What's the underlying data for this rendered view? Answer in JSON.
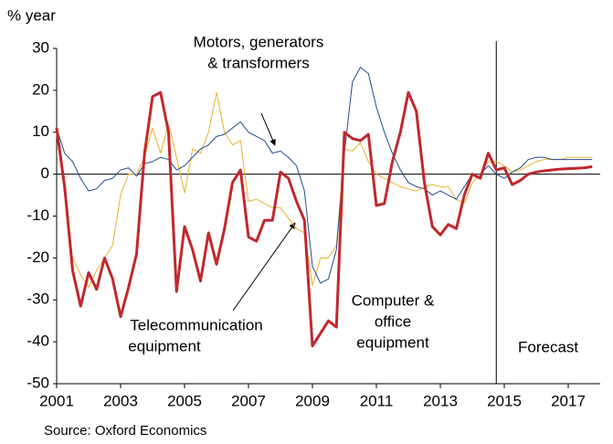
{
  "chart_data": {
    "type": "line",
    "y_label": "% year",
    "source": "Source: Oxford Economics",
    "xlim": [
      2001,
      2018
    ],
    "xticks": [
      2001,
      2003,
      2005,
      2007,
      2009,
      2011,
      2013,
      2015,
      2017
    ],
    "ylim": [
      -50,
      30
    ],
    "yticks": [
      -50,
      -40,
      -30,
      -20,
      -10,
      0,
      10,
      20,
      30
    ],
    "grid": false,
    "forecast_start": 2014.75,
    "x": [
      2001,
      2001.25,
      2001.5,
      2001.75,
      2002,
      2002.25,
      2002.5,
      2002.75,
      2003,
      2003.25,
      2003.5,
      2003.75,
      2004,
      2004.25,
      2004.5,
      2004.75,
      2005,
      2005.25,
      2005.5,
      2005.75,
      2006,
      2006.25,
      2006.5,
      2006.75,
      2007,
      2007.25,
      2007.5,
      2007.75,
      2008,
      2008.25,
      2008.5,
      2008.75,
      2009,
      2009.25,
      2009.5,
      2009.75,
      2010,
      2010.25,
      2010.5,
      2010.75,
      2011,
      2011.25,
      2011.5,
      2011.75,
      2012,
      2012.25,
      2012.5,
      2012.75,
      2013,
      2013.25,
      2013.5,
      2013.75,
      2014,
      2014.25,
      2014.5,
      2014.75,
      2015,
      2015.25,
      2015.5,
      2015.75,
      2016,
      2016.25,
      2016.5,
      2016.75,
      2017,
      2017.25,
      2017.5,
      2017.75
    ],
    "series": [
      {
        "color": "#e8b130",
        "width": 1,
        "values": [
          10,
          -5,
          -20,
          -24,
          -27,
          -23,
          -20,
          -17,
          -5,
          0,
          0,
          4,
          11,
          5,
          12,
          4,
          -4.5,
          6,
          5,
          10,
          19.5,
          10,
          7,
          8,
          -6.5,
          -6,
          -7,
          -8,
          -8,
          -10.5,
          -13,
          -14,
          -26.5,
          -20,
          -20,
          -17,
          6,
          5.5,
          7.5,
          3,
          0,
          -1,
          -2,
          -3,
          -3.5,
          -4,
          -3,
          -2.5,
          -3,
          -3,
          -6,
          -7,
          -2,
          0,
          3,
          3,
          2,
          0.5,
          1,
          2,
          3,
          3.5,
          3.5,
          3.5,
          4,
          4,
          4,
          4
        ]
      },
      {
        "color": "#1f4e8c",
        "width": 1,
        "values": [
          11,
          5,
          3,
          -1,
          -4,
          -3.5,
          -1.5,
          -1,
          1,
          1.5,
          -0.5,
          2.5,
          3,
          4,
          3.5,
          1,
          2,
          4,
          6,
          7,
          9,
          9.5,
          11,
          12.5,
          10,
          9,
          8,
          5,
          5.5,
          4,
          2,
          -4,
          -22,
          -26,
          -25,
          -18,
          5,
          22,
          25.5,
          24,
          16,
          10,
          5,
          1,
          -2,
          -3,
          -3.5,
          -5,
          -4,
          -5,
          -6,
          -3,
          0,
          0,
          2,
          0,
          -1,
          0.5,
          1.5,
          3.5,
          4,
          4,
          3.5,
          3.5,
          3.5,
          3.5,
          3.5,
          3.5
        ]
      },
      {
        "color": "#c0282d",
        "width": 3,
        "values": [
          11,
          -3,
          -23,
          -31.5,
          -23.5,
          -27.5,
          -20,
          -25,
          -34,
          -27,
          -19,
          5,
          18.5,
          19.5,
          10,
          -28,
          -12.5,
          -18,
          -25.5,
          -14,
          -21.5,
          -13,
          -2,
          1,
          -15,
          -16,
          -11,
          -11,
          0.5,
          -1,
          -6.5,
          -11,
          -41,
          -38,
          -35,
          -36.5,
          10,
          8.5,
          8,
          9.5,
          -7.5,
          -7,
          3,
          10,
          19.5,
          15,
          -2,
          -12.5,
          -14.5,
          -12,
          -13,
          -5,
          0,
          -1,
          5,
          1,
          1.5,
          -2.5,
          -1.5,
          0,
          0.5,
          0.8,
          1,
          1.2,
          1.3,
          1.4,
          1.5,
          1.8
        ]
      }
    ],
    "annotations": [
      {
        "lines": [
          "Motors, generators",
          "& transformers"
        ]
      },
      {
        "lines": [
          "Computer &",
          "office",
          "equipment"
        ]
      },
      {
        "lines": [
          "Telecommunication",
          "equipment"
        ]
      },
      {
        "lines": [
          "Forecast"
        ]
      }
    ]
  }
}
